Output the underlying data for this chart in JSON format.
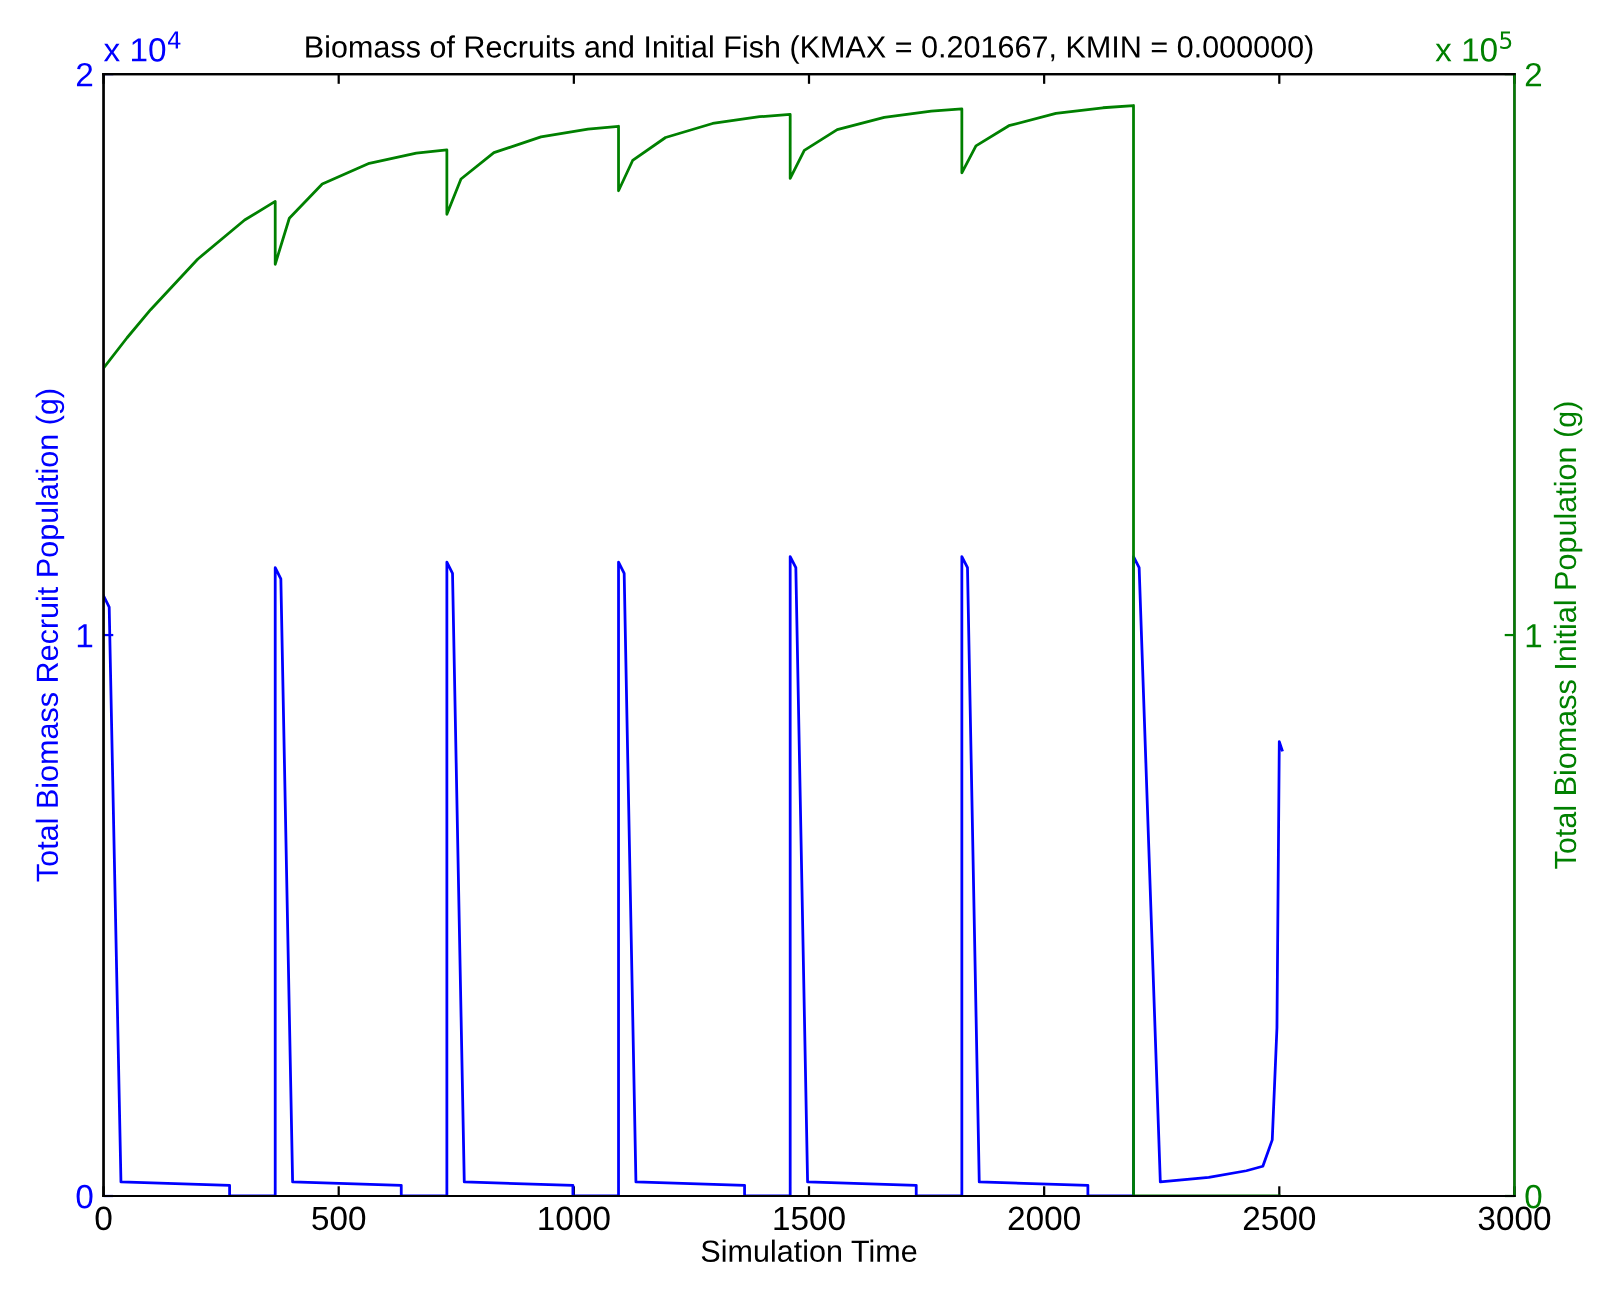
{
  "chart_data": {
    "type": "line",
    "title": "Biomass of Recruits and Initial Fish (KMAX = 0.201667, KMIN = 0.000000)",
    "xlabel": "Simulation Time",
    "ylabel": "Total Biomass Recruit Population (g)",
    "y2label": "Total Biomass Initial Population (g)",
    "annotations": [
      "x 10$^{4}$",
      "x 10$^{5}$"
    ],
    "xlim": [
      0,
      3000
    ],
    "xticks": [
      0,
      500,
      1000,
      1500,
      2000,
      2500,
      3000
    ],
    "ylim": [
      0,
      2
    ],
    "yticks": [
      0,
      1,
      2
    ],
    "y2lim": [
      0,
      2
    ],
    "y2ticks": [
      0,
      1,
      2
    ],
    "series": [
      {
        "color": "#0000ff",
        "x": [
          0,
          12,
          37,
          268,
          268,
          365,
          365,
          377,
          402,
          633,
          633,
          730,
          730,
          742,
          767,
          998,
          998,
          1095,
          1095,
          1107,
          1132,
          1363,
          1363,
          1460,
          1460,
          1472,
          1497,
          1728,
          1728,
          1825,
          1825,
          1837,
          1862,
          2093,
          2093,
          2190,
          2190,
          2202,
          2247,
          2350,
          2430,
          2465,
          2485,
          2495,
          2500,
          2506
        ],
        "values": [
          1.07,
          1.05,
          0.025,
          0.019,
          0,
          0,
          1.12,
          1.1,
          0.025,
          0.019,
          0,
          0,
          1.13,
          1.11,
          0.025,
          0.019,
          0,
          0,
          1.13,
          1.11,
          0.025,
          0.019,
          0,
          0,
          1.14,
          1.12,
          0.025,
          0.019,
          0,
          0,
          1.14,
          1.12,
          0.025,
          0.019,
          0,
          0,
          1.14,
          1.12,
          0.025,
          0.033,
          0.045,
          0.053,
          0.1,
          0.3,
          0.81,
          0.795
        ]
      },
      {
        "color": "#008000",
        "axis": "y2",
        "x": [
          0,
          50,
          100,
          200,
          300,
          365,
          365,
          395,
          465,
          565,
          665,
          730,
          730,
          760,
          830,
          930,
          1030,
          1095,
          1095,
          1125,
          1195,
          1295,
          1395,
          1460,
          1460,
          1490,
          1560,
          1660,
          1760,
          1825,
          1825,
          1855,
          1925,
          2025,
          2125,
          2190,
          2190,
          2190,
          2500
        ],
        "values": [
          1.476,
          1.53,
          1.58,
          1.67,
          1.74,
          1.773,
          1.661,
          1.743,
          1.804,
          1.841,
          1.859,
          1.865,
          1.75,
          1.813,
          1.86,
          1.888,
          1.902,
          1.907,
          1.792,
          1.846,
          1.887,
          1.912,
          1.924,
          1.928,
          1.814,
          1.864,
          1.901,
          1.923,
          1.934,
          1.938,
          1.824,
          1.872,
          1.908,
          1.93,
          1.94,
          1.944,
          1.829,
          0,
          0
        ]
      }
    ]
  }
}
